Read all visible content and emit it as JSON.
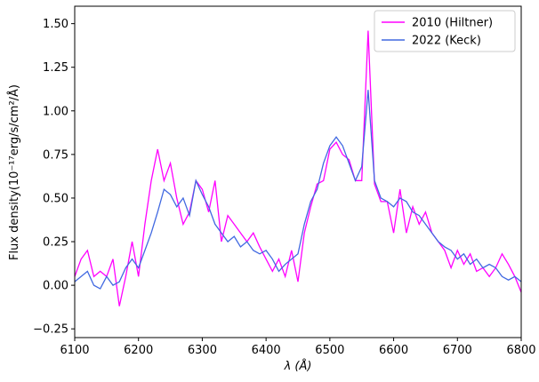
{
  "chart_data": {
    "type": "line",
    "xlabel": "λ (Å)",
    "ylabel": "Flux density(10⁻¹⁷erg/s/cm²/Å)",
    "x": [
      6100,
      6110,
      6120,
      6130,
      6140,
      6150,
      6160,
      6170,
      6180,
      6190,
      6200,
      6210,
      6220,
      6230,
      6240,
      6250,
      6260,
      6270,
      6280,
      6290,
      6300,
      6310,
      6320,
      6330,
      6340,
      6350,
      6360,
      6370,
      6380,
      6390,
      6400,
      6410,
      6420,
      6430,
      6440,
      6450,
      6460,
      6470,
      6480,
      6490,
      6500,
      6510,
      6520,
      6530,
      6540,
      6550,
      6560,
      6570,
      6580,
      6590,
      6600,
      6610,
      6620,
      6630,
      6640,
      6650,
      6660,
      6670,
      6680,
      6690,
      6700,
      6710,
      6720,
      6730,
      6740,
      6750,
      6760,
      6770,
      6780,
      6790,
      6800
    ],
    "series": [
      {
        "name": "2010 (Hiltner)",
        "color": "#ff00ff",
        "values": [
          0.05,
          0.15,
          0.2,
          0.05,
          0.08,
          0.05,
          0.15,
          -0.12,
          0.05,
          0.25,
          0.05,
          0.35,
          0.6,
          0.78,
          0.6,
          0.7,
          0.5,
          0.35,
          0.42,
          0.6,
          0.55,
          0.42,
          0.6,
          0.25,
          0.4,
          0.35,
          0.3,
          0.25,
          0.3,
          0.22,
          0.15,
          0.08,
          0.15,
          0.05,
          0.2,
          0.02,
          0.3,
          0.45,
          0.58,
          0.6,
          0.78,
          0.82,
          0.75,
          0.72,
          0.6,
          0.6,
          1.46,
          0.58,
          0.48,
          0.48,
          0.3,
          0.55,
          0.3,
          0.45,
          0.35,
          0.42,
          0.3,
          0.25,
          0.2,
          0.1,
          0.2,
          0.12,
          0.18,
          0.08,
          0.1,
          0.05,
          0.1,
          0.18,
          0.12,
          0.05,
          -0.04
        ]
      },
      {
        "name": "2022 (Keck)",
        "color": "#4169e1",
        "values": [
          0.02,
          0.05,
          0.08,
          0.0,
          -0.02,
          0.05,
          0.0,
          0.02,
          0.1,
          0.15,
          0.1,
          0.2,
          0.3,
          0.42,
          0.55,
          0.52,
          0.45,
          0.5,
          0.4,
          0.6,
          0.52,
          0.45,
          0.35,
          0.3,
          0.25,
          0.28,
          0.22,
          0.25,
          0.2,
          0.18,
          0.2,
          0.15,
          0.08,
          0.12,
          0.15,
          0.18,
          0.35,
          0.48,
          0.55,
          0.7,
          0.8,
          0.85,
          0.8,
          0.7,
          0.6,
          0.68,
          1.12,
          0.6,
          0.5,
          0.48,
          0.45,
          0.5,
          0.48,
          0.42,
          0.4,
          0.35,
          0.3,
          0.25,
          0.22,
          0.2,
          0.15,
          0.18,
          0.12,
          0.15,
          0.1,
          0.12,
          0.1,
          0.05,
          0.03,
          0.05,
          0.02
        ]
      }
    ],
    "xlim": [
      6100,
      6800
    ],
    "xticks": [
      6100,
      6200,
      6300,
      6400,
      6500,
      6600,
      6700,
      6800
    ],
    "ylim": [
      -0.3,
      1.6
    ],
    "yticks": [
      {
        "value": -0.25,
        "label": "−0.25"
      },
      {
        "value": 0,
        "label": "0.00"
      },
      {
        "value": 0.25,
        "label": "0.25"
      },
      {
        "value": 0.5,
        "label": "0.50"
      },
      {
        "value": 0.75,
        "label": "0.75"
      },
      {
        "value": 1,
        "label": "1.00"
      },
      {
        "value": 1.25,
        "label": "1.25"
      },
      {
        "value": 1.5,
        "label": "1.50"
      }
    ],
    "legend": "upper right"
  }
}
